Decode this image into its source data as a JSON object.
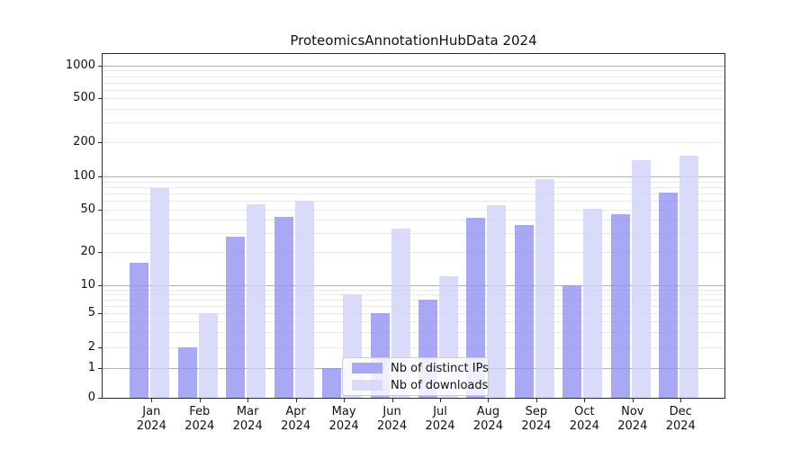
{
  "chart_data": {
    "type": "bar",
    "title": "ProteomicsAnnotationHubData 2024",
    "categories": [
      "Jan",
      "Feb",
      "Mar",
      "Apr",
      "May",
      "Jun",
      "Jul",
      "Aug",
      "Sep",
      "Oct",
      "Nov",
      "Dec"
    ],
    "year_label": "2024",
    "series": [
      {
        "name": "Nb of distinct IPs",
        "color": "#a8a8f5",
        "bar_rgba": "rgba(146,146,243,0.8)",
        "values": [
          16,
          2,
          28,
          43,
          1,
          5,
          7,
          42,
          36,
          10,
          45,
          72
        ]
      },
      {
        "name": "Nb of downloads",
        "color": "#dadaf9",
        "bar_rgba": "rgba(209,209,249,0.8)",
        "values": [
          78,
          5,
          56,
          60,
          8,
          33,
          12,
          55,
          95,
          51,
          138,
          152
        ]
      }
    ],
    "yscale": "log-like (log above 1, linear 0 to 1)",
    "ytick_values": [
      0,
      1,
      2,
      5,
      10,
      20,
      50,
      100,
      200,
      500,
      1000
    ],
    "ylim": [
      0,
      1280
    ],
    "xlabel": "",
    "ylabel": "",
    "grid": "on",
    "major_grid_values": [
      1,
      10,
      100,
      1000
    ],
    "legend_position": "lower center",
    "major_grid_color": "#b3b3b3",
    "minor_grid_color": "#e9e9e9"
  }
}
